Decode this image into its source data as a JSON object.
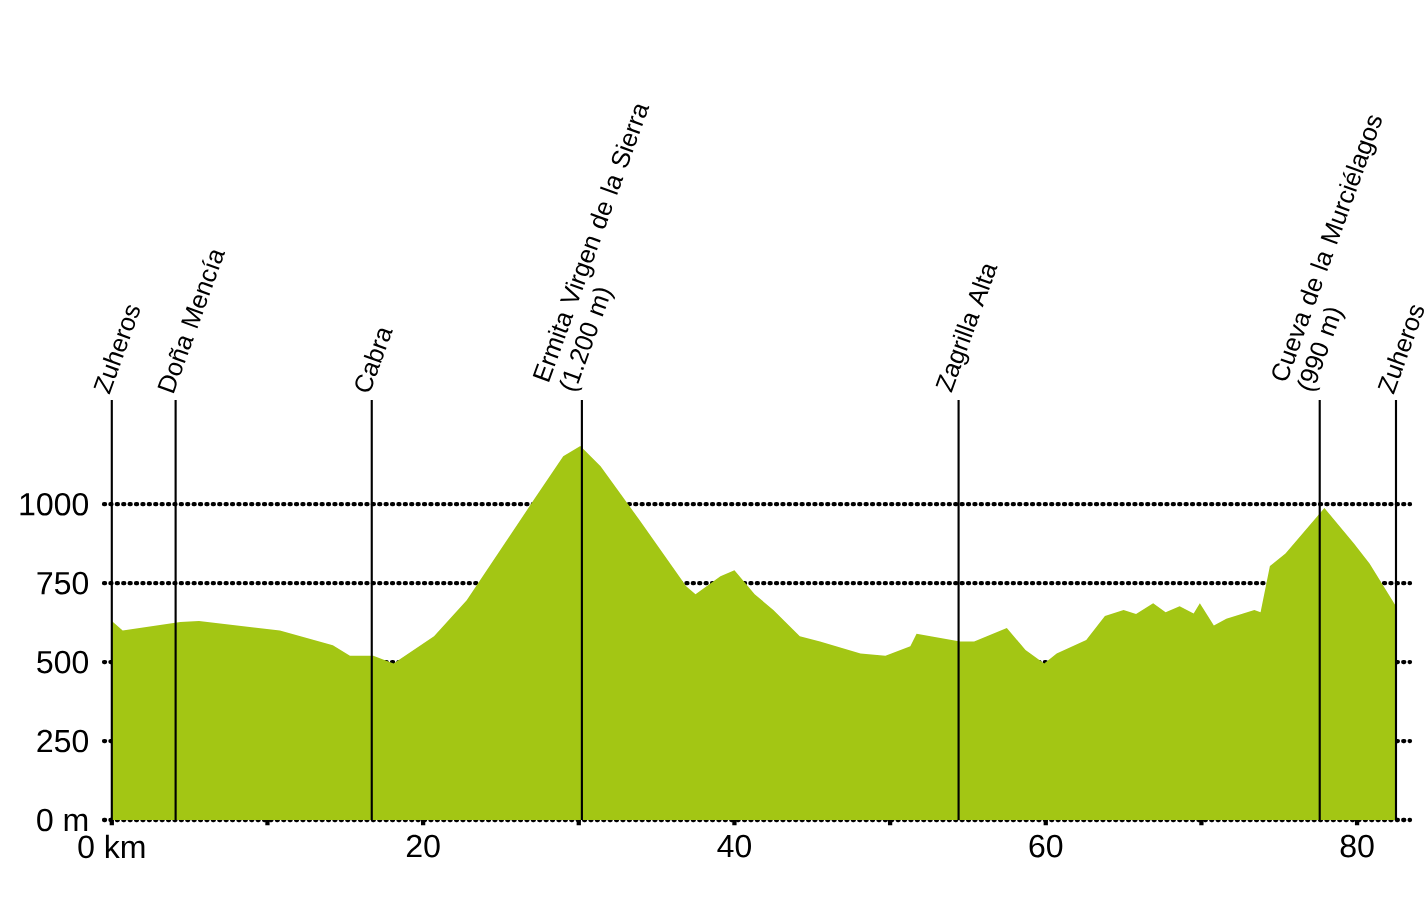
{
  "chart_data": {
    "type": "area",
    "color": "#a3c614",
    "x": [
      0,
      0.7,
      4.4,
      5.6,
      10.8,
      14.2,
      15.3,
      16.8,
      18.1,
      20.7,
      22.8,
      27.1,
      29.0,
      30.1,
      31.4,
      33.9,
      36.9,
      37.5,
      39.1,
      40.0,
      41.3,
      42.5,
      44.2,
      45.5,
      48.1,
      49.7,
      51.3,
      51.7,
      52.6,
      54.5,
      55.4,
      57.5,
      58.7,
      59.9,
      60.7,
      62.6,
      63.8,
      65.0,
      65.8,
      66.9,
      67.7,
      68.6,
      69.5,
      69.9,
      70.8,
      71.6,
      73.4,
      73.8,
      74.4,
      75.4,
      77.9,
      79.8,
      80.8,
      82.5
    ],
    "values": [
      630,
      600,
      627,
      630,
      600,
      553,
      520,
      520,
      496,
      582,
      696,
      1013,
      1152,
      1184,
      1120,
      950,
      740,
      715,
      772,
      791,
      715,
      665,
      582,
      565,
      527,
      520,
      550,
      590,
      582,
      565,
      565,
      608,
      538,
      496,
      527,
      570,
      646,
      665,
      652,
      686,
      658,
      677,
      654,
      686,
      616,
      637,
      665,
      658,
      804,
      844,
      988,
      876,
      812,
      677
    ],
    "xlim": [
      -0.5,
      83.4
    ],
    "ylim": [
      0,
      1330
    ],
    "xticks": [
      {
        "value": 0,
        "label": "0 km"
      },
      {
        "value": 10,
        "label": null
      },
      20,
      {
        "value": 30,
        "label": null
      },
      40,
      {
        "value": 50,
        "label": null
      },
      60,
      {
        "value": 70,
        "label": null
      },
      80
    ],
    "yticks": [
      {
        "value": 0,
        "label": "0 m"
      },
      250,
      500,
      750,
      1000
    ],
    "grid": "y",
    "ref_lines": [
      {
        "axis": "x",
        "value": 0,
        "label": "Zuheros",
        "color": "#000000"
      },
      {
        "axis": "x",
        "value": 4.1,
        "label": "Doña Mencía",
        "color": "#000000"
      },
      {
        "axis": "x",
        "value": 16.7,
        "label": "Cabra",
        "color": "#000000"
      },
      {
        "axis": "x",
        "value": 30.2,
        "label": "Ermita Virgen de la Sierra (1.200 m)",
        "color": "#000000"
      },
      {
        "axis": "x",
        "value": 54.4,
        "label": "Zagrilla Alta",
        "color": "#000000"
      },
      {
        "axis": "x",
        "value": 77.6,
        "label": "Cueva de la Murciélagos (990 m)",
        "color": "#000000"
      },
      {
        "axis": "x",
        "value": 82.5,
        "label": "Zuheros",
        "color": "#000000"
      }
    ]
  }
}
